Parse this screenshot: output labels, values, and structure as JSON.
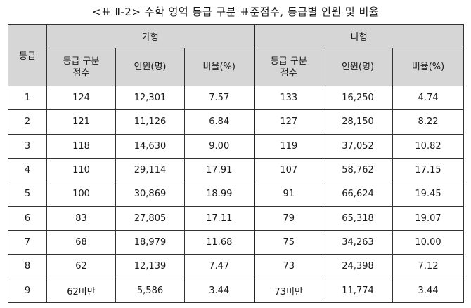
{
  "caption": "<표 Ⅱ-2> 수학 영역 등급 구분 표준점수, 등급별 인원 및 비율",
  "headers": {
    "grade": "등급",
    "group_a": "가형",
    "group_b": "나형",
    "cutoff_line1": "등급 구분",
    "cutoff_line2": "점수",
    "count": "인원(명)",
    "ratio": "비율(%)"
  },
  "rows": [
    {
      "grade": "1",
      "a_cut": "124",
      "a_count": "12,301",
      "a_ratio": "7.57",
      "b_cut": "133",
      "b_count": "16,250",
      "b_ratio": "4.74"
    },
    {
      "grade": "2",
      "a_cut": "121",
      "a_count": "11,126",
      "a_ratio": "6.84",
      "b_cut": "127",
      "b_count": "28,150",
      "b_ratio": "8.22"
    },
    {
      "grade": "3",
      "a_cut": "118",
      "a_count": "14,630",
      "a_ratio": "9.00",
      "b_cut": "119",
      "b_count": "37,052",
      "b_ratio": "10.82"
    },
    {
      "grade": "4",
      "a_cut": "110",
      "a_count": "29,114",
      "a_ratio": "17.91",
      "b_cut": "107",
      "b_count": "58,762",
      "b_ratio": "17.15"
    },
    {
      "grade": "5",
      "a_cut": "100",
      "a_count": "30,869",
      "a_ratio": "18.99",
      "b_cut": "91",
      "b_count": "66,624",
      "b_ratio": "19.45"
    },
    {
      "grade": "6",
      "a_cut": "83",
      "a_count": "27,805",
      "a_ratio": "17.11",
      "b_cut": "79",
      "b_count": "65,318",
      "b_ratio": "19.07"
    },
    {
      "grade": "7",
      "a_cut": "68",
      "a_count": "18,979",
      "a_ratio": "11.68",
      "b_cut": "75",
      "b_count": "34,263",
      "b_ratio": "10.00"
    },
    {
      "grade": "8",
      "a_cut": "62",
      "a_count": "12,139",
      "a_ratio": "7.47",
      "b_cut": "73",
      "b_count": "24,398",
      "b_ratio": "7.12"
    },
    {
      "grade": "9",
      "a_cut": "62미만",
      "a_count": "5,586",
      "a_ratio": "3.44",
      "b_cut": "73미만",
      "b_count": "11,774",
      "b_ratio": "3.44"
    }
  ]
}
